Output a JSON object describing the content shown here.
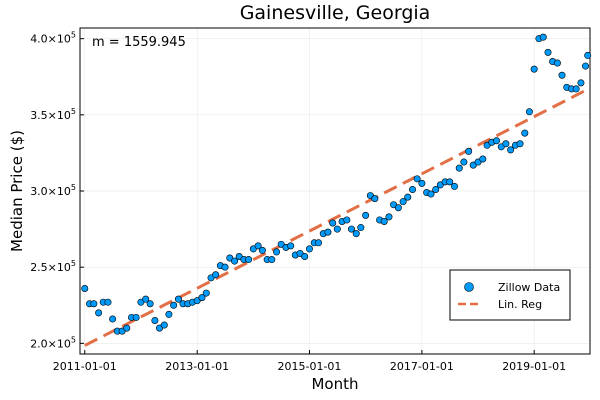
{
  "chart_data": {
    "type": "scatter",
    "title": "Gainesville, Georgia",
    "xlabel": "Month",
    "ylabel": "Median Price ($)",
    "annotation": "m = 1559.945",
    "x_type": "date",
    "xlim": [
      "2010-12-01",
      "2019-12-30"
    ],
    "ylim": [
      193000,
      407000
    ],
    "x_ticks": [
      "2011-01-01",
      "2013-01-01",
      "2015-01-01",
      "2017-01-01",
      "2019-01-01"
    ],
    "y_ticks": [
      {
        "value": 200000,
        "mantissa": "2.0×10",
        "exponent": "5"
      },
      {
        "value": 250000,
        "mantissa": "2.5×10",
        "exponent": "5"
      },
      {
        "value": 300000,
        "mantissa": "3.0×10",
        "exponent": "5"
      },
      {
        "value": 350000,
        "mantissa": "3.5×10",
        "exponent": "5"
      },
      {
        "value": 400000,
        "mantissa": "4.0×10",
        "exponent": "5"
      }
    ],
    "grid": true,
    "legend_position": "bottom-right",
    "series": [
      {
        "name": "Zillow Data",
        "kind": "scatter",
        "color": "#009AFA",
        "points": [
          [
            "2011-01-01",
            236000
          ],
          [
            "2011-02-01",
            226000
          ],
          [
            "2011-03-01",
            226000
          ],
          [
            "2011-04-01",
            220000
          ],
          [
            "2011-05-01",
            227000
          ],
          [
            "2011-06-01",
            227000
          ],
          [
            "2011-07-01",
            216000
          ],
          [
            "2011-08-01",
            208000
          ],
          [
            "2011-09-01",
            208000
          ],
          [
            "2011-10-01",
            210000
          ],
          [
            "2011-11-01",
            217000
          ],
          [
            "2011-12-01",
            217000
          ],
          [
            "2012-01-01",
            227000
          ],
          [
            "2012-02-01",
            229000
          ],
          [
            "2012-03-01",
            226000
          ],
          [
            "2012-04-01",
            215000
          ],
          [
            "2012-05-01",
            210000
          ],
          [
            "2012-06-01",
            212000
          ],
          [
            "2012-07-01",
            219000
          ],
          [
            "2012-08-01",
            225000
          ],
          [
            "2012-09-01",
            229000
          ],
          [
            "2012-10-01",
            226000
          ],
          [
            "2012-11-01",
            226000
          ],
          [
            "2012-12-01",
            227000
          ],
          [
            "2013-01-01",
            228000
          ],
          [
            "2013-02-01",
            230000
          ],
          [
            "2013-03-01",
            233000
          ],
          [
            "2013-04-01",
            243000
          ],
          [
            "2013-05-01",
            245000
          ],
          [
            "2013-06-01",
            251000
          ],
          [
            "2013-07-01",
            250000
          ],
          [
            "2013-08-01",
            256000
          ],
          [
            "2013-09-01",
            254000
          ],
          [
            "2013-10-01",
            257000
          ],
          [
            "2013-11-01",
            255000
          ],
          [
            "2013-12-01",
            255000
          ],
          [
            "2014-01-01",
            262000
          ],
          [
            "2014-02-01",
            264000
          ],
          [
            "2014-03-01",
            261000
          ],
          [
            "2014-04-01",
            255000
          ],
          [
            "2014-05-01",
            255000
          ],
          [
            "2014-06-01",
            260000
          ],
          [
            "2014-07-01",
            265000
          ],
          [
            "2014-08-01",
            263000
          ],
          [
            "2014-09-01",
            264000
          ],
          [
            "2014-10-01",
            258000
          ],
          [
            "2014-11-01",
            259000
          ],
          [
            "2014-12-01",
            257000
          ],
          [
            "2015-01-01",
            262000
          ],
          [
            "2015-02-01",
            266000
          ],
          [
            "2015-03-01",
            266000
          ],
          [
            "2015-04-01",
            272000
          ],
          [
            "2015-05-01",
            273000
          ],
          [
            "2015-06-01",
            279000
          ],
          [
            "2015-07-01",
            275000
          ],
          [
            "2015-08-01",
            280000
          ],
          [
            "2015-09-01",
            281000
          ],
          [
            "2015-10-01",
            275000
          ],
          [
            "2015-11-01",
            272000
          ],
          [
            "2015-12-01",
            276000
          ],
          [
            "2016-01-01",
            284000
          ],
          [
            "2016-02-01",
            297000
          ],
          [
            "2016-03-01",
            295000
          ],
          [
            "2016-04-01",
            281000
          ],
          [
            "2016-05-01",
            280000
          ],
          [
            "2016-06-01",
            283000
          ],
          [
            "2016-07-01",
            291000
          ],
          [
            "2016-08-01",
            289000
          ],
          [
            "2016-09-01",
            293000
          ],
          [
            "2016-10-01",
            296000
          ],
          [
            "2016-11-01",
            301000
          ],
          [
            "2016-12-01",
            308000
          ],
          [
            "2017-01-01",
            305000
          ],
          [
            "2017-02-01",
            299000
          ],
          [
            "2017-03-01",
            298000
          ],
          [
            "2017-04-01",
            301000
          ],
          [
            "2017-05-01",
            304000
          ],
          [
            "2017-06-01",
            306000
          ],
          [
            "2017-07-01",
            306000
          ],
          [
            "2017-08-01",
            303000
          ],
          [
            "2017-09-01",
            315000
          ],
          [
            "2017-10-01",
            319000
          ],
          [
            "2017-11-01",
            326000
          ],
          [
            "2017-12-01",
            317000
          ],
          [
            "2018-01-01",
            319000
          ],
          [
            "2018-02-01",
            321000
          ],
          [
            "2018-03-01",
            330000
          ],
          [
            "2018-04-01",
            332000
          ],
          [
            "2018-05-01",
            333000
          ],
          [
            "2018-06-01",
            329000
          ],
          [
            "2018-07-01",
            331000
          ],
          [
            "2018-08-01",
            327000
          ],
          [
            "2018-09-01",
            330000
          ],
          [
            "2018-10-01",
            331000
          ],
          [
            "2018-11-01",
            338000
          ],
          [
            "2018-12-01",
            352000
          ],
          [
            "2019-01-01",
            380000
          ],
          [
            "2019-02-01",
            400000
          ],
          [
            "2019-03-01",
            401000
          ],
          [
            "2019-04-01",
            391000
          ],
          [
            "2019-05-01",
            385000
          ],
          [
            "2019-06-01",
            384000
          ],
          [
            "2019-07-01",
            376000
          ],
          [
            "2019-08-01",
            368000
          ],
          [
            "2019-09-01",
            367000
          ],
          [
            "2019-10-01",
            367000
          ],
          [
            "2019-11-01",
            371000
          ],
          [
            "2019-12-01",
            382000
          ],
          [
            "2019-12-15",
            389000
          ]
        ]
      },
      {
        "name": "Lin. Reg",
        "kind": "dashed-line",
        "color": "#E26F46",
        "points": [
          [
            "2011-01-01",
            198600
          ],
          [
            "2019-12-01",
            366000
          ]
        ]
      }
    ]
  }
}
